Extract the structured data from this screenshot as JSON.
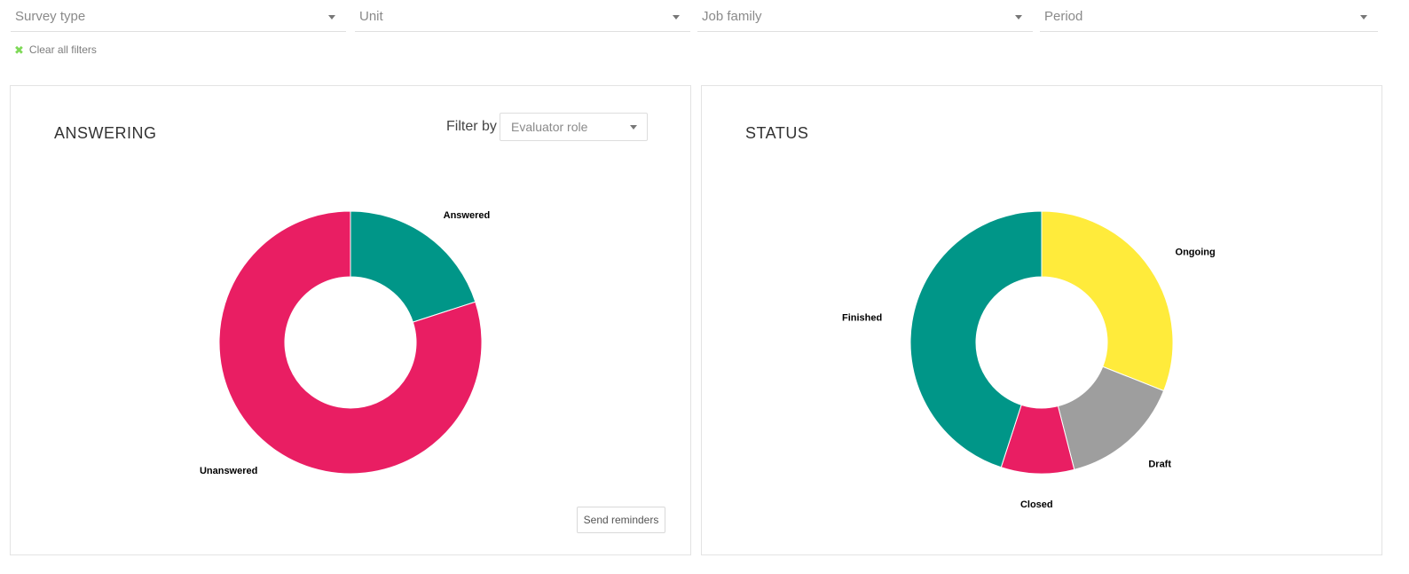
{
  "filters": {
    "survey_type": {
      "placeholder": "Survey type"
    },
    "unit": {
      "placeholder": "Unit"
    },
    "job_family": {
      "placeholder": "Job family"
    },
    "period": {
      "placeholder": "Period"
    },
    "clear_all": "Clear all filters"
  },
  "answering": {
    "title": "ANSWERING",
    "filter_by_label": "Filter by",
    "evaluator_role_placeholder": "Evaluator role",
    "send_reminders_label": "Send reminders"
  },
  "status": {
    "title": "STATUS"
  },
  "colors": {
    "teal": "#009688",
    "pink": "#e91e63",
    "yellow": "#ffeb3b",
    "grey": "#9e9e9e",
    "accent_green": "#7ed957"
  },
  "icons": {
    "clear": "x-icon",
    "dropdown": "caret-down-icon"
  },
  "chart_data": [
    {
      "type": "pie",
      "variant": "donut",
      "title": "ANSWERING",
      "slices": [
        {
          "label": "Answered",
          "value": 20,
          "color": "#009688"
        },
        {
          "label": "Unanswered",
          "value": 80,
          "color": "#e91e63"
        }
      ]
    },
    {
      "type": "pie",
      "variant": "donut",
      "title": "STATUS",
      "slices": [
        {
          "label": "Ongoing",
          "value": 31,
          "color": "#ffeb3b"
        },
        {
          "label": "Draft",
          "value": 15,
          "color": "#9e9e9e"
        },
        {
          "label": "Closed",
          "value": 9,
          "color": "#e91e63"
        },
        {
          "label": "Finished",
          "value": 45,
          "color": "#009688"
        }
      ]
    }
  ]
}
